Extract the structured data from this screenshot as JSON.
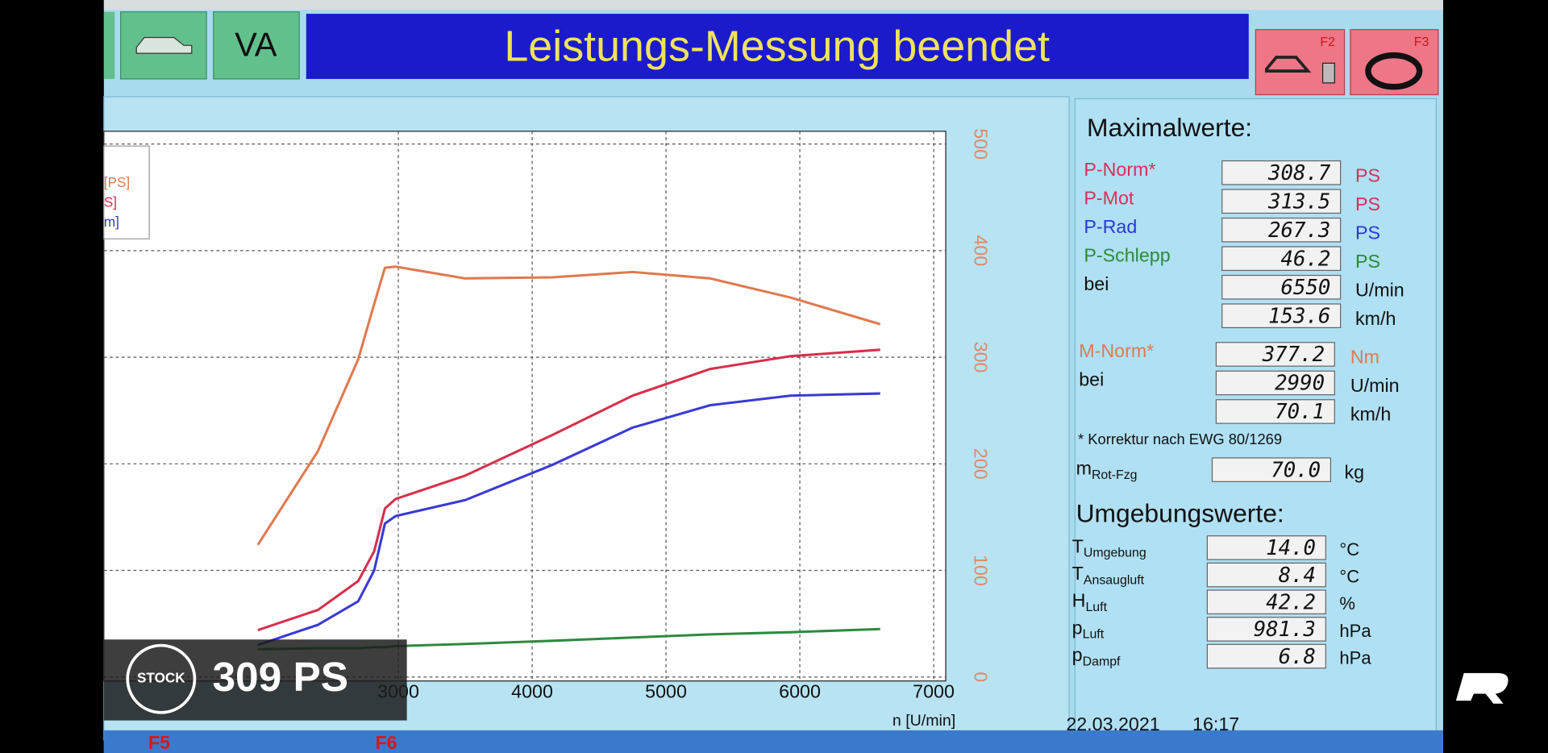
{
  "header": {
    "left_button": "VA",
    "title": "Leistungs-Messung beendet",
    "f2": "F2",
    "f3": "F3"
  },
  "chart_data": {
    "type": "line",
    "x_label": "n [U/min]",
    "legend_texts": [
      "[PS]",
      "S]",
      "m]"
    ],
    "x": [
      1950,
      2400,
      2700,
      2820,
      2900,
      2980,
      3500,
      4150,
      4750,
      5330,
      5930,
      6600
    ],
    "series": [
      {
        "color": "#e07a50",
        "values": [
          124,
          212,
          298,
          350,
          384,
          385,
          374,
          375,
          380,
          374,
          356,
          331
        ]
      },
      {
        "color": "#d6304c",
        "values": [
          44,
          63,
          90,
          118,
          158,
          167,
          189,
          227,
          264,
          289,
          301,
          307
        ]
      },
      {
        "color": "#3a3ad6",
        "values": [
          30,
          49,
          71,
          100,
          144,
          151,
          166,
          199,
          234,
          255,
          264,
          266
        ]
      },
      {
        "color": "#2e8a40",
        "values": [
          26,
          27,
          27,
          28,
          28,
          29,
          31,
          34,
          37,
          40,
          42,
          45
        ]
      }
    ],
    "xlim": [
      800,
      7090
    ],
    "ylim": [
      0,
      512
    ],
    "xticks": [
      3000,
      4000,
      5000,
      6000,
      7000
    ],
    "yticks": [
      0,
      100,
      200,
      300,
      400,
      500
    ],
    "grid": true
  },
  "panel": {
    "max_title": "Maximalwerte:",
    "power_rows": [
      {
        "label": "P-Norm*",
        "value": "308.7",
        "unit": "PS",
        "color": "#d8305a"
      },
      {
        "label": "P-Mot",
        "value": "313.5",
        "unit": "PS",
        "color": "#d8305a"
      },
      {
        "label": "P-Rad",
        "value": "267.3",
        "unit": "PS",
        "color": "#2a3ad0"
      },
      {
        "label": "P-Schlepp",
        "value": "46.2",
        "unit": "PS",
        "color": "#2a8a3a"
      },
      {
        "label": "bei",
        "value": "6550",
        "unit": "U/min",
        "color": "#111111"
      },
      {
        "value": "153.6",
        "unit": "km/h",
        "color": "#111111"
      }
    ],
    "torque_rows": [
      {
        "label": "M-Norm*",
        "value": "377.2",
        "unit": "Nm",
        "color": "#e07a50"
      },
      {
        "label": "bei",
        "value": "2990",
        "unit": "U/min",
        "color": "#111111"
      },
      {
        "value": "70.1",
        "unit": "km/h",
        "color": "#111111"
      }
    ],
    "note": "* Korrektur nach EWG 80/1269",
    "mass": {
      "label": "m",
      "sub": "Rot-Fzg",
      "value": "70.0",
      "unit": "kg"
    },
    "env_title": "Umgebungswerte:",
    "env_rows": [
      {
        "label": "T",
        "sub": "Umgebung",
        "value": "14.0",
        "unit": "°C"
      },
      {
        "label": "T",
        "sub": "Ansaugluft",
        "value": "8.4",
        "unit": "°C"
      },
      {
        "label": "H",
        "sub": "Luft",
        "value": "42.2",
        "unit": "%"
      },
      {
        "label": "p",
        "sub": "Luft",
        "value": "981.3",
        "unit": "hPa"
      },
      {
        "label": "p",
        "sub": "Dampf",
        "value": "6.8",
        "unit": "hPa"
      }
    ]
  },
  "footer": {
    "date": "22.03.2021",
    "time": "16:17",
    "keys": [
      "F5",
      "F6"
    ]
  },
  "overlay": {
    "badge": "STOCK",
    "text": "309 PS"
  }
}
